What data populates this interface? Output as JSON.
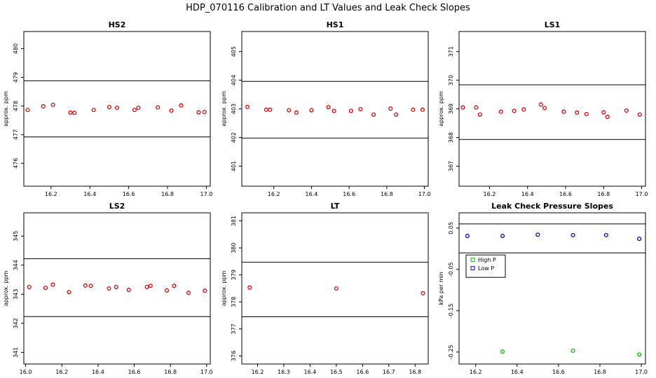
{
  "figure_title": "HDP_070116 Calibration and LT Values and Leak Check Slopes",
  "colors": {
    "red": "#dd0000",
    "green": "#00bb00",
    "blue": "#0000cc",
    "axis": "#000000"
  },
  "chart_data": [
    {
      "type": "scatter",
      "title": "HS2",
      "ylabel": "approx. ppm",
      "xlabel": "",
      "xlim": [
        16.06,
        17.02
      ],
      "ylim": [
        475.2,
        480.6
      ],
      "xticks": [
        16.2,
        16.4,
        16.6,
        16.8,
        17.0
      ],
      "xtick_labels": [
        "16.2",
        "16.4",
        "16.6",
        "16.8",
        "17.0"
      ],
      "yticks": [
        476,
        477,
        478,
        479,
        480
      ],
      "ytick_labels": [
        "476",
        "477",
        "478",
        "479",
        "480"
      ],
      "hlines": [
        476.92,
        478.88
      ],
      "series": [
        {
          "name": "HS2",
          "color": "red",
          "marker": "circle",
          "x": [
            16.08,
            16.16,
            16.21,
            16.3,
            16.32,
            16.42,
            16.5,
            16.54,
            16.63,
            16.65,
            16.75,
            16.82,
            16.87,
            16.96,
            16.99
          ],
          "y": [
            477.86,
            477.99,
            478.04,
            477.77,
            477.76,
            477.86,
            477.96,
            477.94,
            477.86,
            477.94,
            477.95,
            477.84,
            478.02,
            477.78,
            477.79
          ]
        }
      ]
    },
    {
      "type": "scatter",
      "title": "HS1",
      "ylabel": "approx. ppm",
      "xlabel": "",
      "xlim": [
        16.03,
        17.02
      ],
      "ylim": [
        400.3,
        405.7
      ],
      "xticks": [
        16.2,
        16.4,
        16.6,
        16.8,
        17.0
      ],
      "xtick_labels": [
        "16.2",
        "16.4",
        "16.6",
        "16.8",
        "17.0"
      ],
      "yticks": [
        401,
        402,
        403,
        404,
        405
      ],
      "ytick_labels": [
        "401",
        "402",
        "403",
        "404",
        "405"
      ],
      "hlines": [
        401.98,
        403.96
      ],
      "series": [
        {
          "name": "HS1",
          "color": "red",
          "marker": "circle",
          "x": [
            16.06,
            16.16,
            16.18,
            16.28,
            16.32,
            16.4,
            16.49,
            16.52,
            16.61,
            16.66,
            16.73,
            16.82,
            16.85,
            16.94,
            16.99
          ],
          "y": [
            403.07,
            402.97,
            402.97,
            402.95,
            402.87,
            402.95,
            403.06,
            402.93,
            402.93,
            402.99,
            402.8,
            403.01,
            402.8,
            402.97,
            402.97
          ]
        }
      ]
    },
    {
      "type": "scatter",
      "title": "LS1",
      "ylabel": "approx. ppm",
      "xlabel": "",
      "xlim": [
        16.04,
        17.02
      ],
      "ylim": [
        366.3,
        371.7
      ],
      "xticks": [
        16.2,
        16.4,
        16.6,
        16.8,
        17.0
      ],
      "xtick_labels": [
        "16.2",
        "16.4",
        "16.6",
        "16.8",
        "17.0"
      ],
      "yticks": [
        367,
        368,
        369,
        370,
        371
      ],
      "ytick_labels": [
        "367",
        "368",
        "369",
        "370",
        "371"
      ],
      "hlines": [
        367.93,
        369.84
      ],
      "series": [
        {
          "name": "LS1",
          "color": "red",
          "marker": "circle",
          "x": [
            16.06,
            16.13,
            16.15,
            16.26,
            16.33,
            16.38,
            16.47,
            16.49,
            16.59,
            16.66,
            16.71,
            16.8,
            16.82,
            16.92,
            16.99
          ],
          "y": [
            369.05,
            369.05,
            368.8,
            368.9,
            368.93,
            368.98,
            369.15,
            369.03,
            368.9,
            368.87,
            368.82,
            368.88,
            368.72,
            368.94,
            368.8
          ]
        }
      ]
    },
    {
      "type": "scatter",
      "title": "LS2",
      "ylabel": "approx. ppm",
      "xlabel": "",
      "xlim": [
        15.99,
        17.02
      ],
      "ylim": [
        340.6,
        345.8
      ],
      "xticks": [
        16.0,
        16.2,
        16.4,
        16.6,
        16.8,
        17.0
      ],
      "xtick_labels": [
        "16.0",
        "16.2",
        "16.4",
        "16.6",
        "16.8",
        "17.0"
      ],
      "yticks": [
        341,
        342,
        343,
        344,
        345
      ],
      "ytick_labels": [
        "341",
        "342",
        "343",
        "344",
        "345"
      ],
      "hlines": [
        342.23,
        344.22
      ],
      "series": [
        {
          "name": "LS2",
          "color": "red",
          "marker": "circle",
          "x": [
            16.02,
            16.11,
            16.15,
            16.24,
            16.33,
            16.36,
            16.46,
            16.5,
            16.57,
            16.67,
            16.69,
            16.78,
            16.82,
            16.9,
            16.99
          ],
          "y": [
            343.25,
            343.22,
            343.33,
            343.07,
            343.3,
            343.29,
            343.2,
            343.25,
            343.15,
            343.25,
            343.29,
            343.13,
            343.29,
            343.05,
            343.12
          ]
        }
      ]
    },
    {
      "type": "scatter",
      "title": "LT",
      "ylabel": "approx. ppm",
      "xlabel": "",
      "xlim": [
        16.14,
        16.85
      ],
      "ylim": [
        375.7,
        381.3
      ],
      "xticks": [
        16.2,
        16.3,
        16.4,
        16.5,
        16.6,
        16.7,
        16.8
      ],
      "xtick_labels": [
        "16.2",
        "16.3",
        "16.4",
        "16.5",
        "16.6",
        "16.7",
        "16.8"
      ],
      "yticks": [
        376,
        377,
        378,
        379,
        380,
        381
      ],
      "ytick_labels": [
        "376",
        "377",
        "378",
        "379",
        "380",
        "381"
      ],
      "hlines": [
        377.45,
        379.47
      ],
      "series": [
        {
          "name": "LT",
          "color": "red",
          "marker": "circle",
          "x": [
            16.17,
            16.5,
            16.83
          ],
          "y": [
            378.53,
            378.5,
            378.32
          ]
        }
      ]
    },
    {
      "type": "scatter",
      "title": "Leak Check Pressure Slopes",
      "ylabel": "kPa per min",
      "xlabel": "",
      "xlim": [
        16.12,
        17.02
      ],
      "ylim": [
        -0.279,
        0.087
      ],
      "xticks": [
        16.2,
        16.4,
        16.6,
        16.8,
        17.0
      ],
      "xtick_labels": [
        "16.2",
        "16.4",
        "16.6",
        "16.8",
        "17.0"
      ],
      "yticks": [
        0.05,
        -0.05,
        -0.15,
        -0.25
      ],
      "ytick_labels": [
        "0.05",
        "-0.05",
        "-0.15",
        "-0.25"
      ],
      "hlines": [
        0.06,
        -0.01
      ],
      "legend": {
        "placement": "center-left",
        "entries": [
          {
            "label": "High P",
            "color": "green"
          },
          {
            "label": "Low P",
            "color": "blue"
          }
        ]
      },
      "series": [
        {
          "name": "High P",
          "color": "green",
          "marker": "circle",
          "x": [
            16.33,
            16.67,
            16.99
          ],
          "y": [
            -0.249,
            -0.247,
            -0.256
          ]
        },
        {
          "name": "Low P",
          "color": "blue",
          "marker": "circle",
          "x": [
            16.16,
            16.33,
            16.5,
            16.67,
            16.83,
            16.99
          ],
          "y": [
            0.031,
            0.031,
            0.034,
            0.033,
            0.033,
            0.024
          ]
        }
      ]
    }
  ]
}
